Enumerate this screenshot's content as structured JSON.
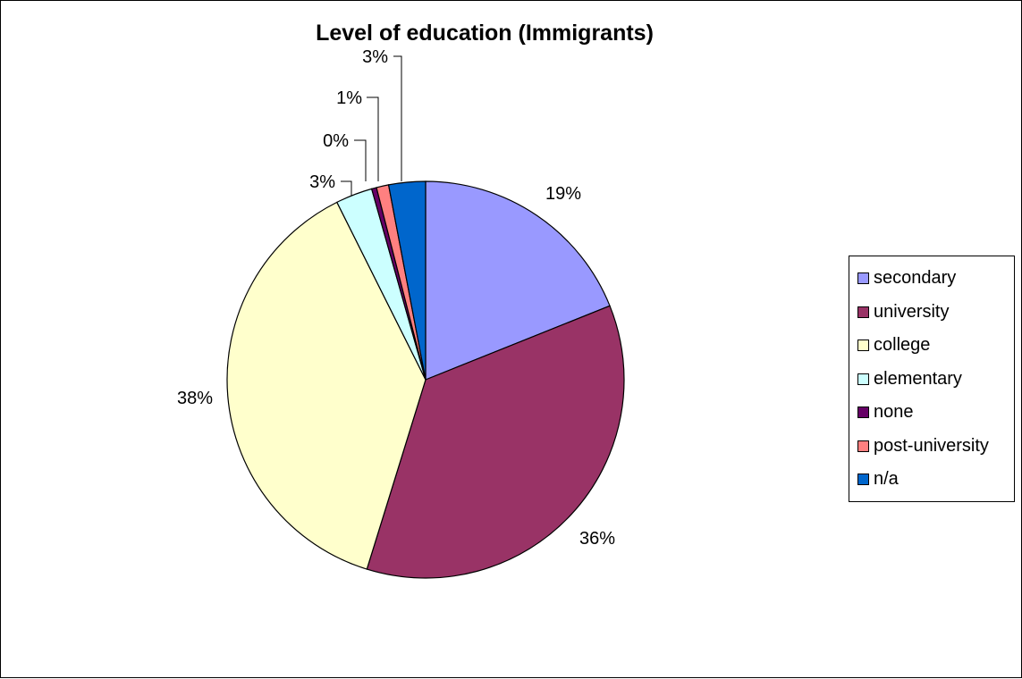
{
  "chart_data": {
    "type": "pie",
    "title": "Level of education (Immigrants)",
    "start_angle_deg": 0,
    "direction": "clockwise",
    "slices": [
      {
        "name": "secondary",
        "value": 19,
        "label": "19%",
        "color": "#9999FF"
      },
      {
        "name": "university",
        "value": 36,
        "label": "36%",
        "color": "#993366"
      },
      {
        "name": "college",
        "value": 38,
        "label": "38%",
        "color": "#FFFFCC"
      },
      {
        "name": "elementary",
        "value": 3,
        "label": "3%",
        "color": "#CCFFFF"
      },
      {
        "name": "none",
        "value": 0.4,
        "label": "0%",
        "color": "#660066"
      },
      {
        "name": "post-university",
        "value": 1,
        "label": "1%",
        "color": "#FF8080"
      },
      {
        "name": "n/a",
        "value": 3,
        "label": "3%",
        "color": "#0066CC"
      }
    ],
    "legend": {
      "position": "right",
      "entries": [
        "secondary",
        "university",
        "college",
        "elementary",
        "none",
        "post-university",
        "n/a"
      ]
    }
  }
}
